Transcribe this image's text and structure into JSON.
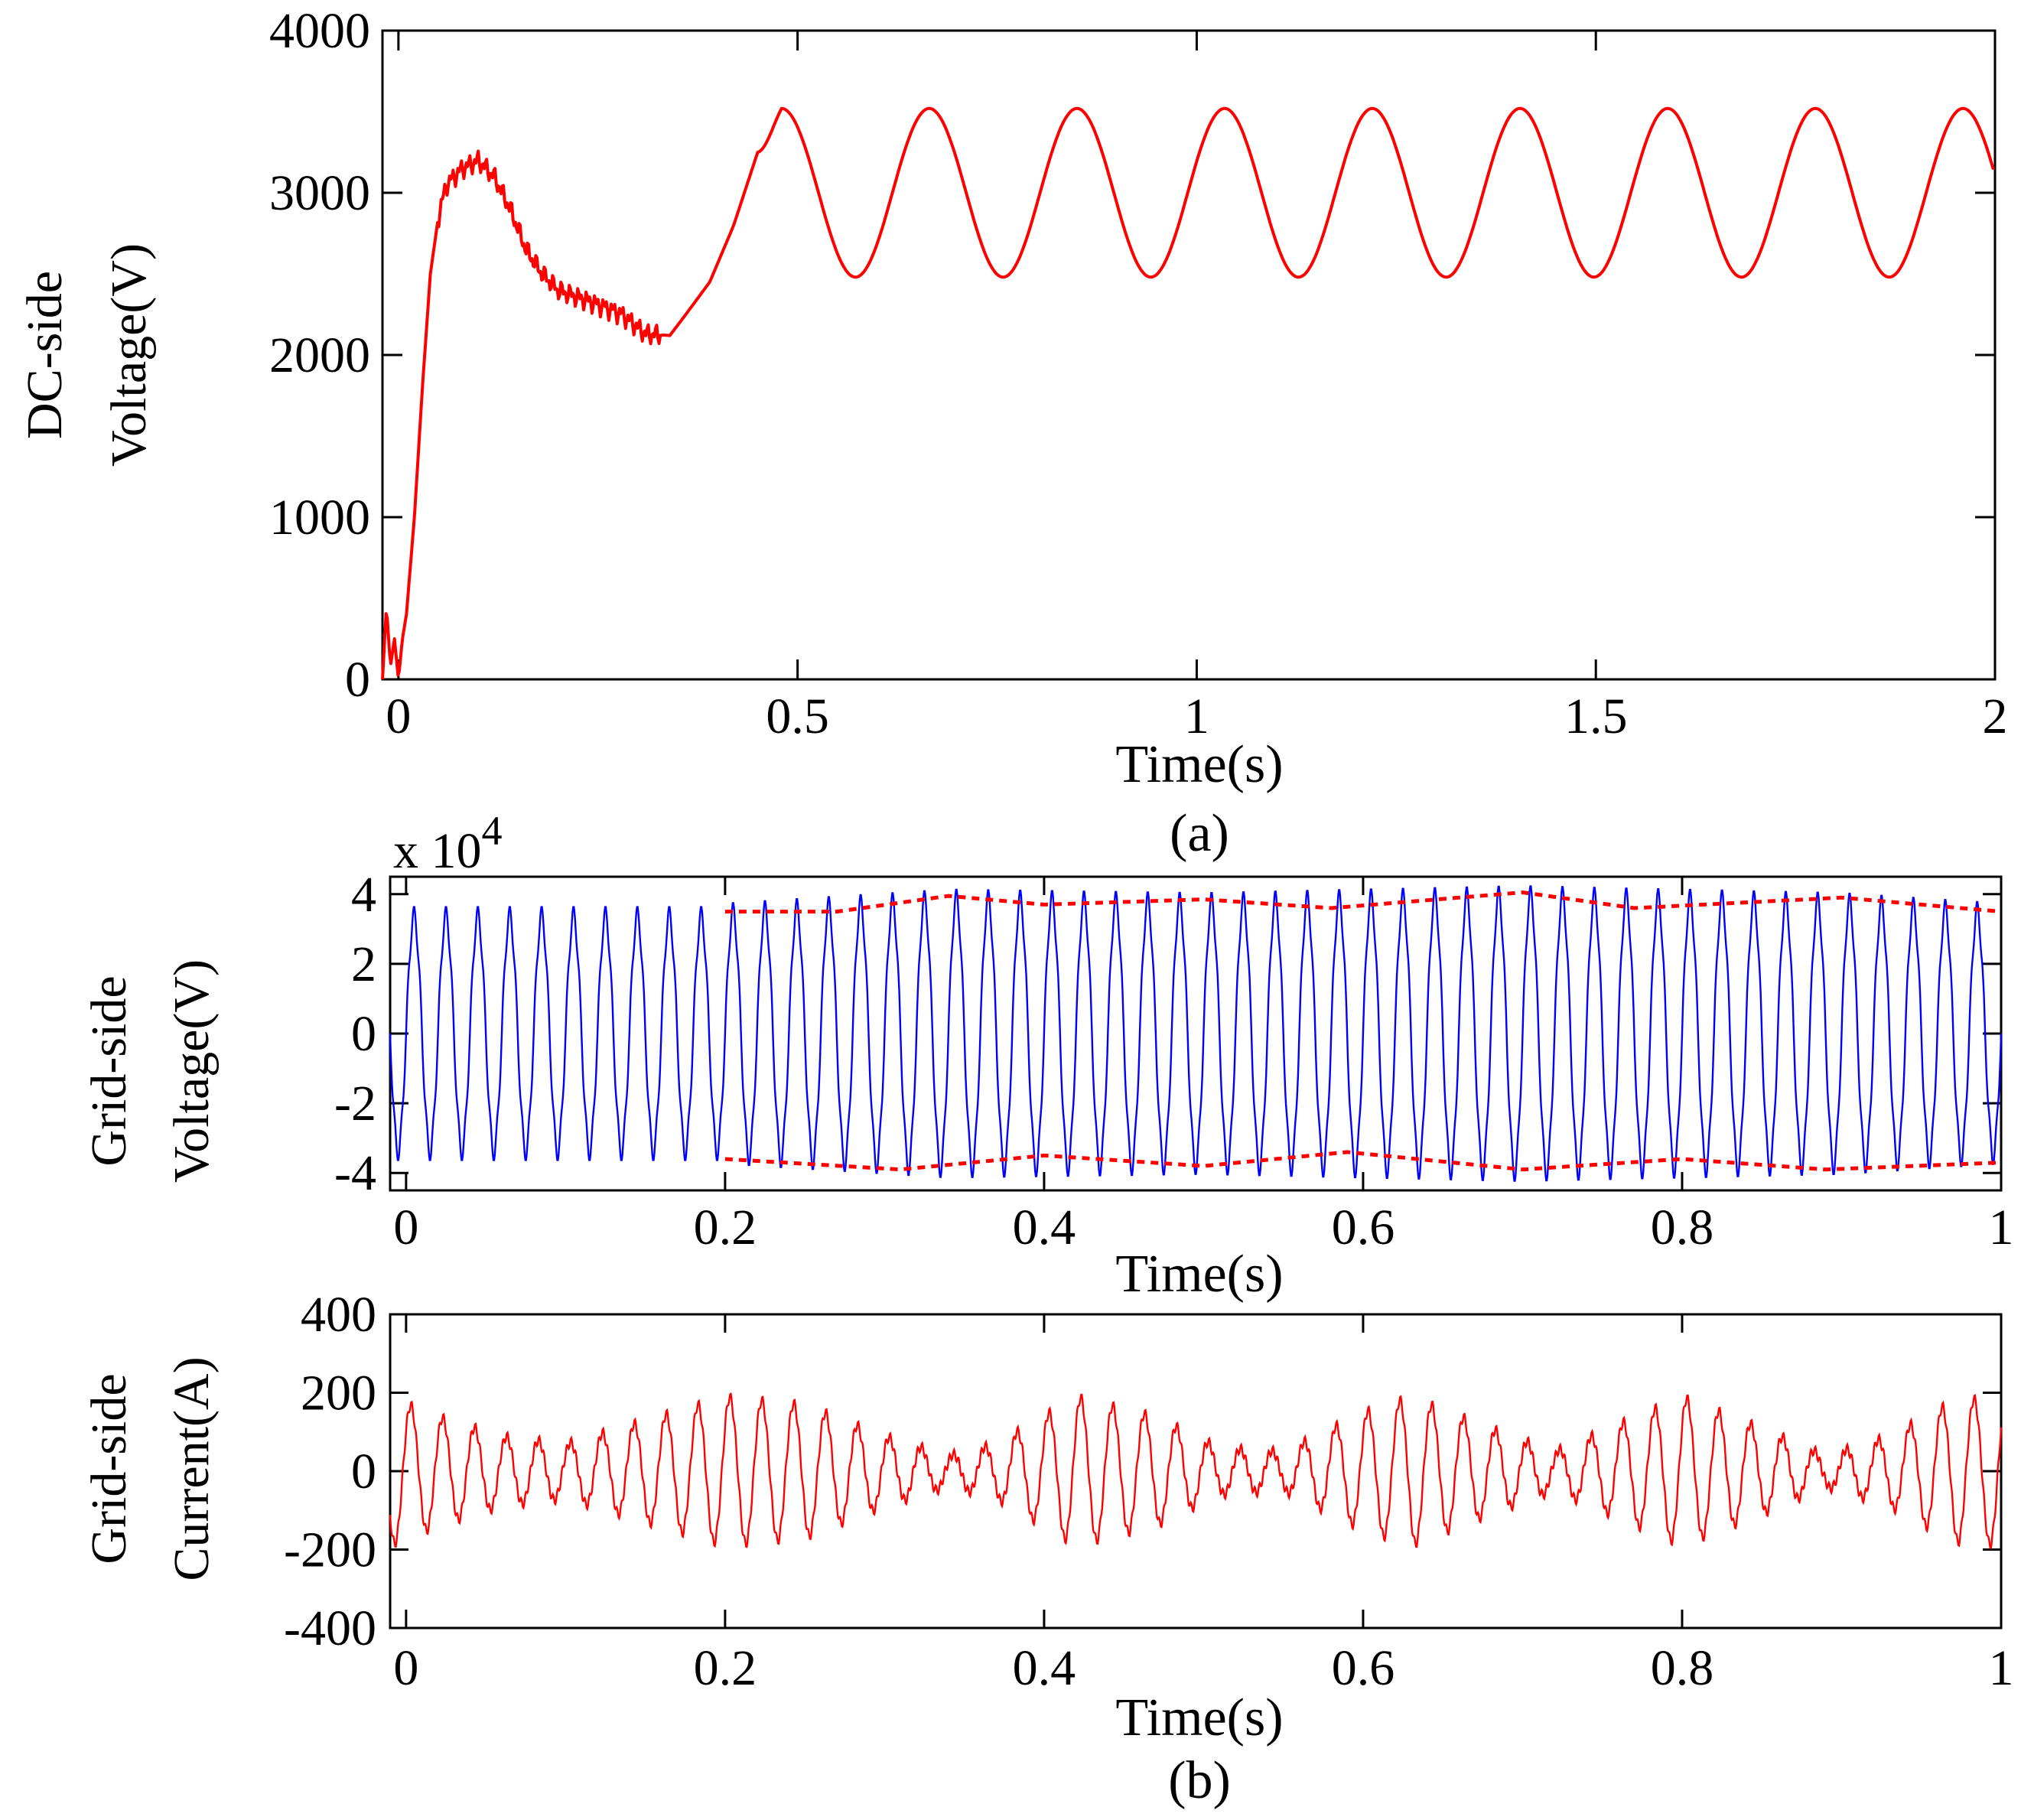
{
  "colors": {
    "dc_voltage": "#ff0000",
    "grid_voltage": "#0000ff",
    "envelope": "#ff0000",
    "grid_current": "#ff0000"
  },
  "chart_data": [
    {
      "id": "dc_voltage",
      "type": "line",
      "caption": "(a)",
      "xlabel": "Time(s)",
      "ylabel_lines": [
        "DC-side",
        "Voltage(V)"
      ],
      "xlim": [
        -0.02,
        2.0
      ],
      "ylim": [
        0,
        4000
      ],
      "xticks": [
        0,
        0.5,
        1,
        1.5,
        2
      ],
      "xtick_labels": [
        "0",
        "0.5",
        "1",
        "1.5",
        "2"
      ],
      "yticks": [
        0,
        1000,
        2000,
        3000,
        4000
      ],
      "ytick_labels": [
        "0",
        "1000",
        "2000",
        "3000",
        "4000"
      ],
      "series": [
        {
          "name": "DC-side voltage",
          "style": "solid",
          "transient": [
            [
              -0.02,
              0
            ],
            [
              -0.015,
              450
            ],
            [
              -0.01,
              80
            ],
            [
              -0.005,
              250
            ],
            [
              0.0,
              0
            ],
            [
              0.005,
              250
            ],
            [
              0.01,
              400
            ],
            [
              0.02,
              1000
            ],
            [
              0.03,
              1800
            ],
            [
              0.04,
              2500
            ],
            [
              0.05,
              2850
            ],
            [
              0.06,
              3050
            ],
            [
              0.08,
              3150
            ],
            [
              0.1,
              3200
            ],
            [
              0.12,
              3100
            ],
            [
              0.14,
              2900
            ],
            [
              0.16,
              2650
            ],
            [
              0.18,
              2500
            ],
            [
              0.2,
              2400
            ],
            [
              0.24,
              2330
            ],
            [
              0.28,
              2250
            ],
            [
              0.31,
              2130
            ],
            [
              0.34,
              2120
            ],
            [
              0.36,
              2250
            ],
            [
              0.39,
              2450
            ],
            [
              0.42,
              2800
            ],
            [
              0.45,
              3250
            ]
          ],
          "oscillation": {
            "from_time": 0.45,
            "offset": 3000,
            "amplitude": 520,
            "period": 0.185,
            "first_peak": 0.48,
            "until_time": 2.0
          }
        }
      ]
    },
    {
      "id": "grid_voltage",
      "type": "line",
      "xlabel": "Time(s)",
      "ylabel_lines": [
        "Grid-side",
        "Voltage(V)"
      ],
      "exponent_label": "x 10",
      "exponent_power": "4",
      "xlim": [
        -0.01,
        1.0
      ],
      "ylim": [
        -4.5,
        4.5
      ],
      "xticks": [
        0,
        0.2,
        0.4,
        0.6,
        0.8,
        1.0
      ],
      "xtick_labels": [
        "0",
        "0.2",
        "0.4",
        "0.6",
        "0.8",
        "1"
      ],
      "yticks": [
        -4,
        -2,
        0,
        2,
        4
      ],
      "ytick_labels": [
        "-4",
        "-2",
        "0",
        "2",
        "4"
      ],
      "series": [
        {
          "name": "Grid-side voltage",
          "style": "solid",
          "frequency_hz": 50,
          "start_time": -0.01,
          "amplitude_before_0_2s": 3.4,
          "switch_time": 0.2,
          "amplitude_points": [
            [
              0.2,
              3.5
            ],
            [
              0.34,
              3.9
            ],
            [
              0.5,
              3.8
            ],
            [
              0.7,
              4.0
            ],
            [
              0.9,
              3.8
            ],
            [
              1.0,
              3.5
            ]
          ]
        },
        {
          "name": "Upper envelope",
          "style": "dashed",
          "points": [
            [
              0.2,
              3.5
            ],
            [
              0.27,
              3.5
            ],
            [
              0.34,
              3.95
            ],
            [
              0.4,
              3.7
            ],
            [
              0.5,
              3.85
            ],
            [
              0.58,
              3.6
            ],
            [
              0.7,
              4.05
            ],
            [
              0.77,
              3.6
            ],
            [
              0.9,
              3.9
            ],
            [
              1.0,
              3.5
            ]
          ]
        },
        {
          "name": "Lower envelope",
          "style": "dashed",
          "points": [
            [
              0.2,
              -3.6
            ],
            [
              0.31,
              -3.9
            ],
            [
              0.4,
              -3.5
            ],
            [
              0.5,
              -3.8
            ],
            [
              0.59,
              -3.4
            ],
            [
              0.7,
              -3.9
            ],
            [
              0.8,
              -3.6
            ],
            [
              0.89,
              -3.9
            ],
            [
              1.0,
              -3.7
            ]
          ]
        }
      ]
    },
    {
      "id": "grid_current",
      "type": "line",
      "caption": "(b)",
      "xlabel": "Time(s)",
      "ylabel_lines": [
        "Grid-side",
        "Current(A)"
      ],
      "xlim": [
        -0.01,
        1.0
      ],
      "ylim": [
        -400,
        400
      ],
      "xticks": [
        0,
        0.2,
        0.4,
        0.6,
        0.8,
        1.0
      ],
      "xtick_labels": [
        "0",
        "0.2",
        "0.4",
        "0.6",
        "0.8",
        "1"
      ],
      "yticks": [
        -400,
        -200,
        0,
        200,
        400
      ],
      "ytick_labels": [
        "-400",
        "-200",
        "0",
        "200",
        "400"
      ],
      "series": [
        {
          "name": "Grid-side current",
          "style": "solid",
          "frequency_hz": 50,
          "start_time": -0.01,
          "amplitude_points": [
            [
              -0.01,
              190
            ],
            [
              0.02,
              140
            ],
            [
              0.06,
              90
            ],
            [
              0.1,
              70
            ],
            [
              0.15,
              130
            ],
            [
              0.2,
              190
            ],
            [
              0.25,
              170
            ],
            [
              0.3,
              90
            ],
            [
              0.34,
              40
            ],
            [
              0.37,
              70
            ],
            [
              0.42,
              190
            ],
            [
              0.47,
              140
            ],
            [
              0.51,
              60
            ],
            [
              0.55,
              50
            ],
            [
              0.6,
              150
            ],
            [
              0.63,
              190
            ],
            [
              0.68,
              110
            ],
            [
              0.72,
              50
            ],
            [
              0.76,
              120
            ],
            [
              0.8,
              190
            ],
            [
              0.85,
              110
            ],
            [
              0.89,
              40
            ],
            [
              0.93,
              90
            ],
            [
              0.97,
              180
            ],
            [
              1.0,
              190
            ]
          ]
        }
      ]
    }
  ]
}
